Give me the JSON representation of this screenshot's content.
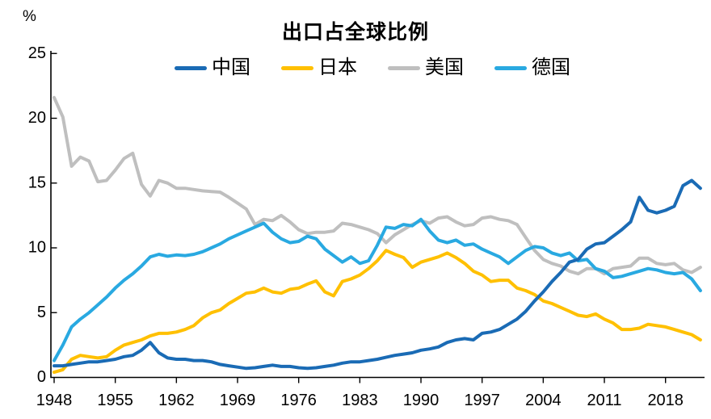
{
  "page": {
    "percent_label": "%",
    "title": "出口占全球比例"
  },
  "chart_data": {
    "type": "line",
    "title": "出口占全球比例",
    "ylabel": "%",
    "xlabel": "",
    "ylim": [
      0,
      25
    ],
    "grid": false,
    "legend_position": "top",
    "y_ticks": [
      0,
      5,
      10,
      15,
      20,
      25
    ],
    "x_ticks": [
      1948,
      1955,
      1962,
      1969,
      1976,
      1983,
      1990,
      1997,
      2004,
      2011,
      2018
    ],
    "x": [
      1948,
      1949,
      1950,
      1951,
      1952,
      1953,
      1954,
      1955,
      1956,
      1957,
      1958,
      1959,
      1960,
      1961,
      1962,
      1963,
      1964,
      1965,
      1966,
      1967,
      1968,
      1969,
      1970,
      1971,
      1972,
      1973,
      1974,
      1975,
      1976,
      1977,
      1978,
      1979,
      1980,
      1981,
      1982,
      1983,
      1984,
      1985,
      1986,
      1987,
      1988,
      1989,
      1990,
      1991,
      1992,
      1993,
      1994,
      1995,
      1996,
      1997,
      1998,
      1999,
      2000,
      2001,
      2002,
      2003,
      2004,
      2005,
      2006,
      2007,
      2008,
      2009,
      2010,
      2011,
      2012,
      2013,
      2014,
      2015,
      2016,
      2017,
      2018,
      2019,
      2020,
      2021,
      2022
    ],
    "series": [
      {
        "name": "中国",
        "color": "#1A6BB5",
        "values": [
          0.9,
          0.9,
          1.0,
          1.1,
          1.2,
          1.2,
          1.3,
          1.4,
          1.6,
          1.7,
          2.1,
          2.7,
          1.9,
          1.5,
          1.4,
          1.4,
          1.3,
          1.3,
          1.2,
          1.0,
          0.9,
          0.8,
          0.7,
          0.75,
          0.85,
          0.95,
          0.85,
          0.85,
          0.75,
          0.7,
          0.75,
          0.85,
          0.95,
          1.1,
          1.2,
          1.2,
          1.3,
          1.4,
          1.55,
          1.7,
          1.8,
          1.9,
          2.1,
          2.2,
          2.35,
          2.7,
          2.9,
          3.0,
          2.9,
          3.4,
          3.5,
          3.7,
          4.1,
          4.5,
          5.1,
          5.9,
          6.6,
          7.4,
          8.1,
          8.9,
          9.1,
          9.9,
          10.3,
          10.4,
          10.9,
          11.4,
          12.0,
          13.9,
          12.9,
          12.7,
          12.9,
          13.2,
          14.8,
          15.2,
          14.6
        ]
      },
      {
        "name": "日本",
        "color": "#FFC000",
        "values": [
          0.4,
          0.6,
          1.4,
          1.7,
          1.6,
          1.5,
          1.6,
          2.1,
          2.5,
          2.7,
          2.9,
          3.2,
          3.4,
          3.4,
          3.5,
          3.7,
          4.0,
          4.6,
          5.0,
          5.2,
          5.7,
          6.1,
          6.5,
          6.6,
          6.9,
          6.6,
          6.5,
          6.8,
          6.9,
          7.2,
          7.45,
          6.6,
          6.3,
          7.4,
          7.6,
          7.9,
          8.4,
          9.0,
          9.8,
          9.5,
          9.25,
          8.5,
          8.9,
          9.1,
          9.3,
          9.6,
          9.25,
          8.8,
          8.2,
          7.9,
          7.4,
          7.5,
          7.5,
          6.9,
          6.7,
          6.4,
          5.9,
          5.7,
          5.4,
          5.1,
          4.8,
          4.7,
          4.9,
          4.5,
          4.2,
          3.7,
          3.7,
          3.8,
          4.1,
          4.0,
          3.9,
          3.7,
          3.5,
          3.3,
          2.9
        ]
      },
      {
        "name": "美国",
        "color": "#BFBFBF",
        "values": [
          21.6,
          20.1,
          16.3,
          17.0,
          16.7,
          15.1,
          15.2,
          16.0,
          16.9,
          17.3,
          14.9,
          14.0,
          15.2,
          15.0,
          14.6,
          14.6,
          14.5,
          14.4,
          14.35,
          14.3,
          13.9,
          13.45,
          13.0,
          11.8,
          12.2,
          12.1,
          12.5,
          12.0,
          11.4,
          11.1,
          11.2,
          11.2,
          11.3,
          11.9,
          11.8,
          11.6,
          11.4,
          11.1,
          10.4,
          11.0,
          11.4,
          11.8,
          12.1,
          11.9,
          12.3,
          12.4,
          12.0,
          11.7,
          11.8,
          12.3,
          12.4,
          12.2,
          12.1,
          11.8,
          10.8,
          9.8,
          9.1,
          8.8,
          8.6,
          8.2,
          8.0,
          8.4,
          8.4,
          8.0,
          8.4,
          8.5,
          8.6,
          9.2,
          9.2,
          8.8,
          8.7,
          8.8,
          8.3,
          8.1,
          8.5
        ]
      },
      {
        "name": "德国",
        "color": "#29A9E1",
        "values": [
          1.3,
          2.5,
          3.9,
          4.5,
          5.0,
          5.6,
          6.2,
          6.9,
          7.5,
          8.0,
          8.6,
          9.3,
          9.5,
          9.35,
          9.45,
          9.4,
          9.5,
          9.7,
          10.0,
          10.3,
          10.7,
          11.0,
          11.3,
          11.6,
          11.9,
          11.2,
          10.7,
          10.4,
          10.5,
          10.9,
          10.7,
          9.9,
          9.4,
          8.9,
          9.3,
          8.8,
          9.0,
          10.2,
          11.6,
          11.5,
          11.8,
          11.7,
          12.2,
          11.3,
          10.6,
          10.4,
          10.6,
          10.2,
          10.3,
          9.9,
          9.6,
          9.3,
          8.8,
          9.3,
          9.8,
          10.1,
          10.0,
          9.6,
          9.4,
          9.6,
          9.0,
          9.1,
          8.4,
          8.2,
          7.7,
          7.8,
          8.0,
          8.2,
          8.4,
          8.3,
          8.1,
          8.0,
          8.1,
          7.6,
          6.7
        ]
      }
    ]
  }
}
